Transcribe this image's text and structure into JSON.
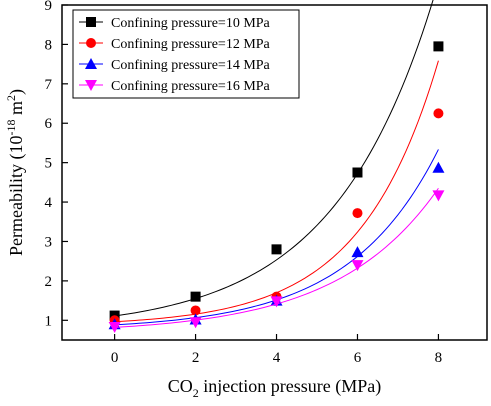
{
  "chart_data": {
    "type": "scatter",
    "xlabel": {
      "main": "CO",
      "sub": "2",
      "rest": " injection pressure (MPa)"
    },
    "ylabel": {
      "main": "Permeability (10",
      "sup": "-18",
      "mid": " m",
      "sup2": "2",
      "end": ")"
    },
    "xlim": [
      -1.3,
      9.2
    ],
    "ylim": [
      0.5,
      9
    ],
    "xticks": [
      0,
      2,
      4,
      6,
      8
    ],
    "yticks": [
      1,
      2,
      3,
      4,
      5,
      6,
      7,
      8,
      9
    ],
    "legend_position": "top-left",
    "series": [
      {
        "name": "Confining pressure=10 MPa",
        "marker": "square",
        "color": "#000000",
        "x": [
          0,
          2,
          4,
          6,
          8
        ],
        "y": [
          1.12,
          1.6,
          2.8,
          4.75,
          7.95
        ],
        "fit": {
          "a": 0.36,
          "b": 0.4,
          "c": 0.75
        }
      },
      {
        "name": "Confining pressure=12 MPa",
        "marker": "circle",
        "color": "#ff0000",
        "x": [
          0,
          2,
          4,
          6,
          8
        ],
        "y": [
          1.0,
          1.25,
          1.6,
          3.72,
          6.25
        ],
        "fit": {
          "a": 0.105,
          "b": 0.52,
          "c": 0.86
        }
      },
      {
        "name": "Confining pressure=14 MPa",
        "marker": "triangle-up",
        "color": "#0000ff",
        "x": [
          0,
          2,
          4,
          6,
          8
        ],
        "y": [
          0.9,
          1.02,
          1.5,
          2.73,
          4.87
        ],
        "fit": {
          "a": 0.125,
          "b": 0.45,
          "c": 0.76
        }
      },
      {
        "name": "Confining pressure=16 MPa",
        "marker": "triangle-down",
        "color": "#ff00ff",
        "x": [
          0,
          2,
          4,
          6,
          8
        ],
        "y": [
          0.83,
          0.95,
          1.48,
          2.4,
          4.17
        ],
        "fit": {
          "a": 0.15,
          "b": 0.4,
          "c": 0.67
        }
      }
    ]
  }
}
